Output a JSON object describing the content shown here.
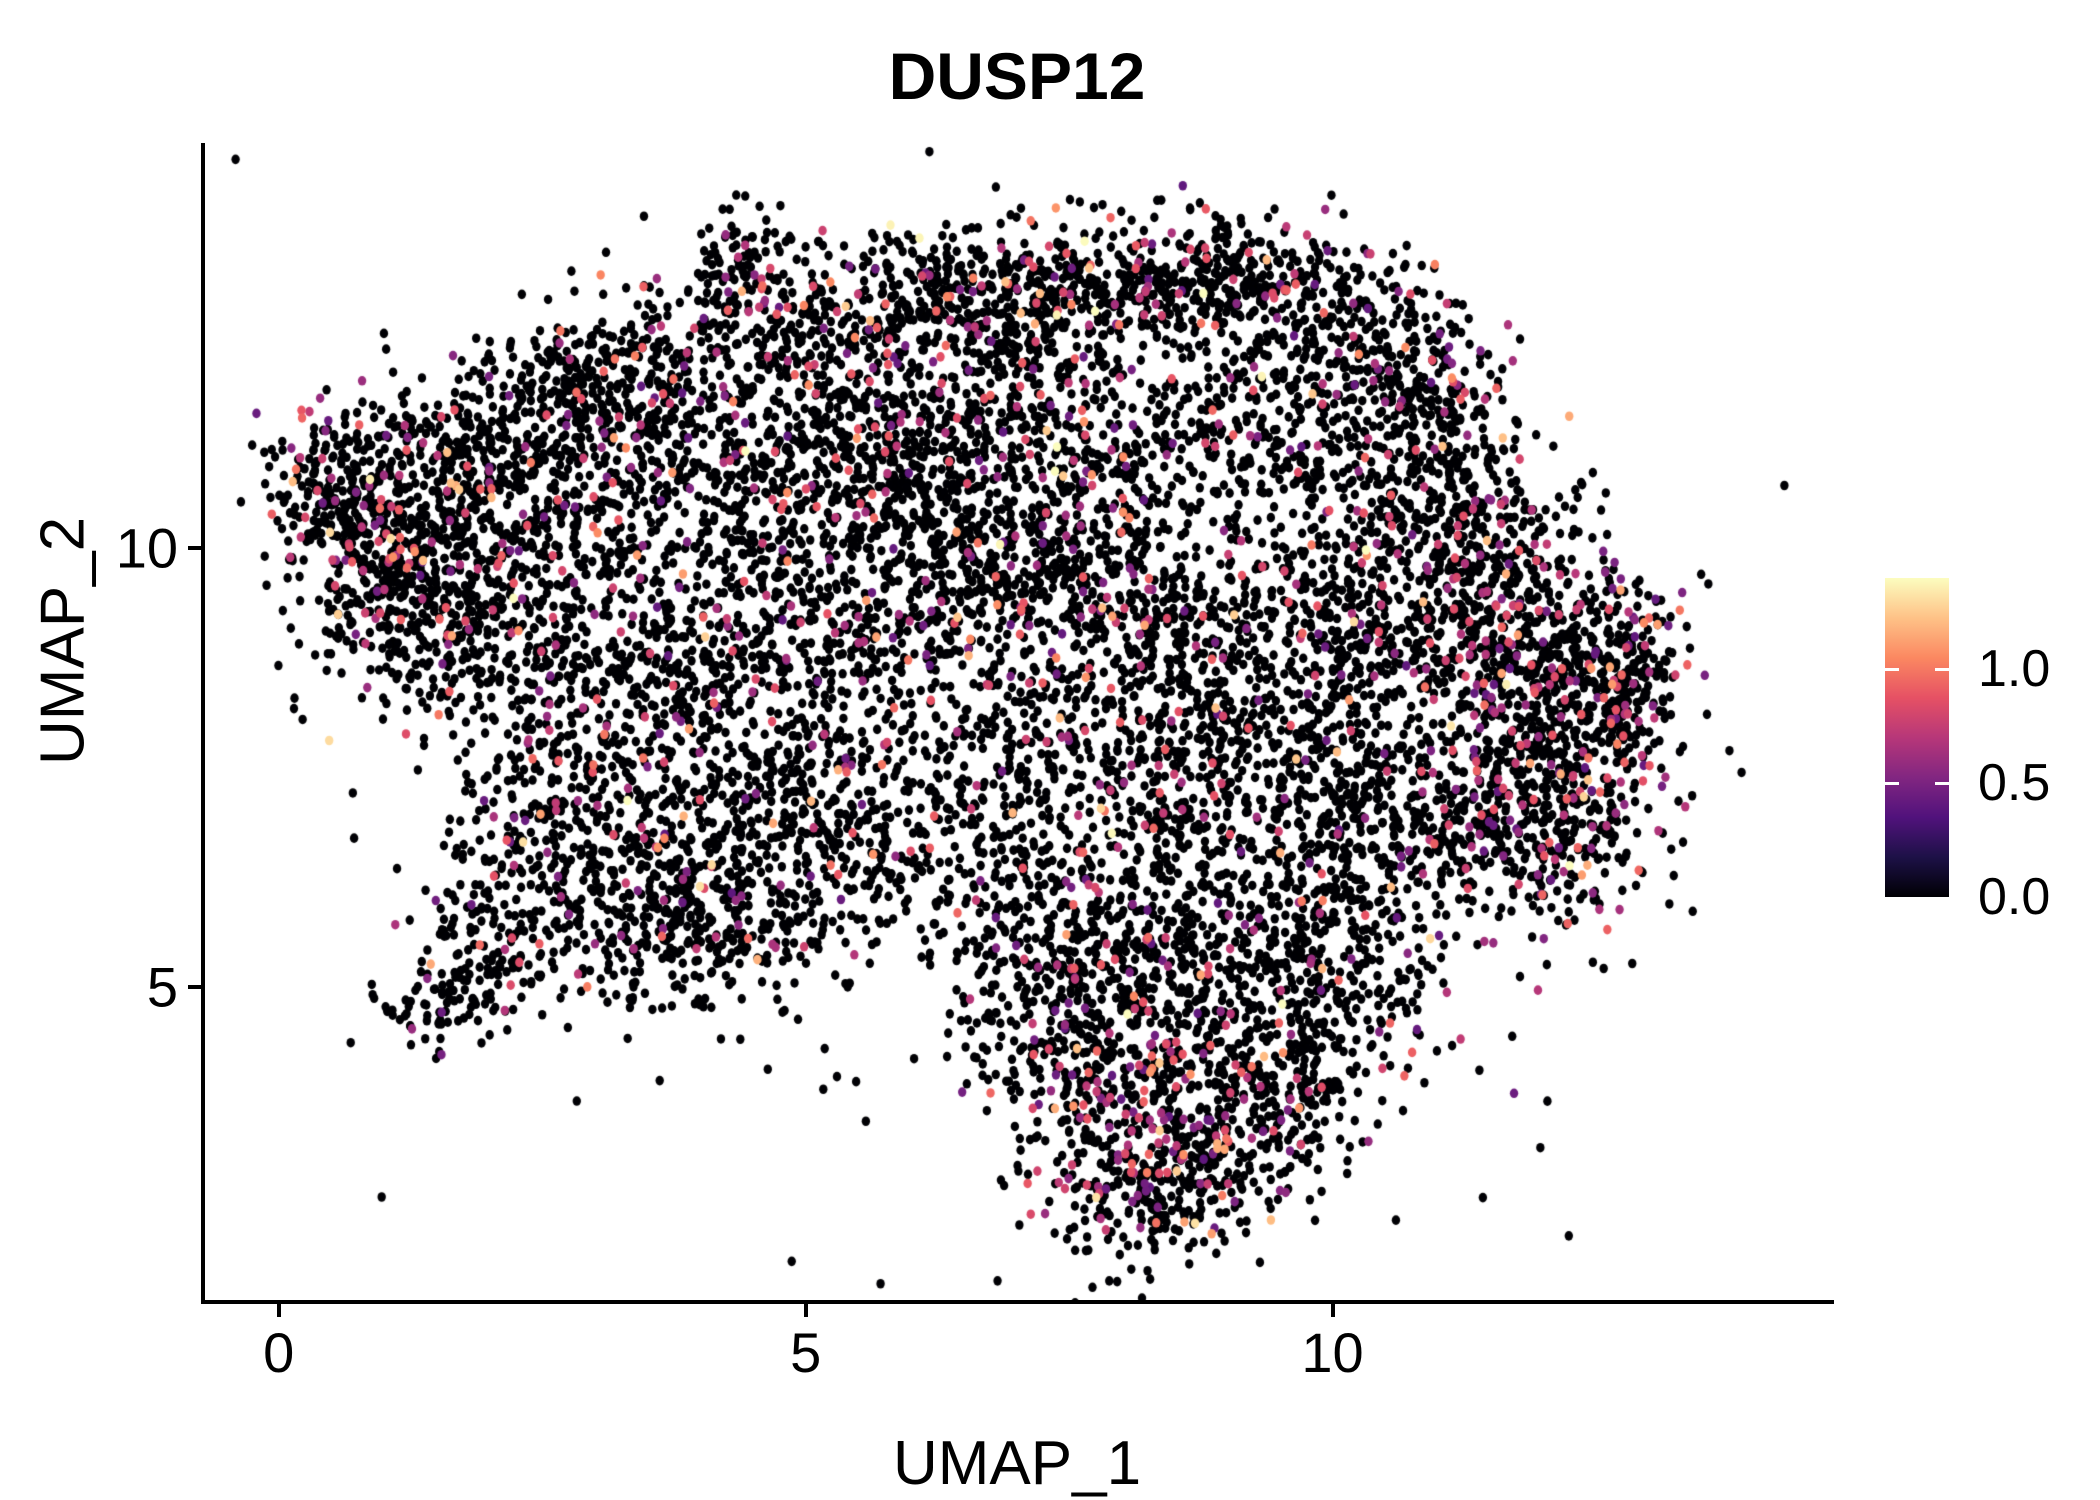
{
  "title": "DUSP12",
  "axes": {
    "x": {
      "label": "UMAP_1",
      "ticks": [
        {
          "label": "0",
          "value": 0
        },
        {
          "label": "5",
          "value": 5
        },
        {
          "label": "10",
          "value": 10
        }
      ]
    },
    "y": {
      "label": "UMAP_2",
      "ticks": [
        {
          "label": "10",
          "value": 10
        },
        {
          "label": "5",
          "value": 5
        }
      ]
    }
  },
  "legend": {
    "ticks": [
      {
        "label": "1.0",
        "value": 1.0
      },
      {
        "label": "0.5",
        "value": 0.5
      },
      {
        "label": "0.0",
        "value": 0.0
      }
    ],
    "domain": [
      0,
      1.4
    ]
  },
  "chart_data": {
    "type": "scatter",
    "title": "DUSP12",
    "xlabel": "UMAP_1",
    "ylabel": "UMAP_2",
    "xlim": [
      -0.7,
      14.73
    ],
    "ylim": [
      1.42,
      14.62
    ],
    "x_ticks": [
      0,
      5,
      10
    ],
    "y_ticks": [
      5,
      10
    ],
    "grid": false,
    "legend_position": "right",
    "colorbar": {
      "domain": [
        0,
        1.4
      ],
      "tick_values": [
        1.0,
        0.5,
        0.0
      ]
    },
    "colormap_stops": [
      [
        0.0,
        "#000004"
      ],
      [
        0.125,
        "#1d1147"
      ],
      [
        0.25,
        "#51127c"
      ],
      [
        0.375,
        "#822681"
      ],
      [
        0.5,
        "#b73779"
      ],
      [
        0.625,
        "#e65164"
      ],
      [
        0.75,
        "#fb8861"
      ],
      [
        0.875,
        "#fec287"
      ],
      [
        1.0,
        "#fcfdbf"
      ]
    ],
    "point_radius_px": [
      4.2,
      4.8
    ],
    "seed": 42,
    "count_scale": 0.8,
    "value_distribution": {
      "p_colored_base": 0.09,
      "mid_range": [
        0.4,
        0.95
      ],
      "p_mid": 0.85,
      "high_range": [
        0.95,
        1.25
      ],
      "p_high": 0.12,
      "max_range": [
        1.25,
        1.42
      ],
      "p_max": 0.03
    },
    "clusters": [
      [
        4.35,
        13.2,
        0.25,
        0.35,
        120,
        1.2
      ],
      [
        5.1,
        12.6,
        0.45,
        0.45,
        200,
        1.2
      ],
      [
        6.0,
        12.9,
        0.5,
        0.4,
        220,
        1.2
      ],
      [
        6.9,
        12.9,
        0.45,
        0.4,
        200,
        1.2
      ],
      [
        7.9,
        13.0,
        0.55,
        0.4,
        260,
        1.2
      ],
      [
        8.9,
        13.1,
        0.5,
        0.35,
        240,
        1.2
      ],
      [
        9.8,
        12.7,
        0.5,
        0.45,
        240,
        1.2
      ],
      [
        10.6,
        12.2,
        0.4,
        0.5,
        200,
        1.2
      ],
      [
        11.1,
        11.4,
        0.35,
        0.5,
        180,
        1.2
      ],
      [
        3.6,
        12.1,
        0.5,
        0.45,
        180,
        1.1
      ],
      [
        2.8,
        11.9,
        0.45,
        0.4,
        160,
        1.1
      ],
      [
        2.0,
        11.3,
        0.5,
        0.5,
        200,
        1.1
      ],
      [
        0.55,
        10.6,
        0.35,
        0.5,
        260,
        1.5
      ],
      [
        0.9,
        9.9,
        0.4,
        0.6,
        260,
        1.5
      ],
      [
        1.5,
        10.6,
        0.5,
        0.6,
        220,
        1.1
      ],
      [
        1.3,
        9.2,
        0.5,
        0.6,
        220,
        1.1
      ],
      [
        2.3,
        10.3,
        0.6,
        0.6,
        220,
        1.1
      ],
      [
        2.1,
        8.9,
        0.55,
        0.7,
        240,
        1.1
      ],
      [
        3.1,
        10.8,
        0.6,
        0.7,
        260,
        1.1
      ],
      [
        4.2,
        11.2,
        0.7,
        0.7,
        280,
        1.0
      ],
      [
        5.3,
        11.3,
        0.6,
        0.6,
        220,
        1.0
      ],
      [
        6.3,
        11.6,
        0.6,
        0.6,
        240,
        1.0
      ],
      [
        7.2,
        11.9,
        0.5,
        0.5,
        180,
        1.0
      ],
      [
        6.0,
        10.6,
        0.7,
        0.6,
        260,
        1.0
      ],
      [
        4.8,
        9.9,
        0.7,
        0.7,
        260,
        1.0
      ],
      [
        7.0,
        10.4,
        0.6,
        0.6,
        220,
        1.0
      ],
      [
        8.0,
        10.7,
        0.5,
        0.5,
        160,
        0.9
      ],
      [
        9.0,
        11.6,
        0.6,
        0.6,
        220,
        0.9
      ],
      [
        9.9,
        11.0,
        0.6,
        0.6,
        220,
        1.0
      ],
      [
        10.7,
        10.3,
        0.5,
        0.6,
        220,
        1.0
      ],
      [
        11.5,
        10.1,
        0.45,
        0.55,
        200,
        1.3
      ],
      [
        3.3,
        9.0,
        0.6,
        0.6,
        240,
        1.0
      ],
      [
        4.3,
        8.7,
        0.6,
        0.6,
        240,
        1.0
      ],
      [
        5.4,
        8.9,
        0.6,
        0.5,
        200,
        1.0
      ],
      [
        6.6,
        9.3,
        0.6,
        0.5,
        200,
        1.0
      ],
      [
        7.6,
        9.5,
        0.6,
        0.5,
        220,
        1.1
      ],
      [
        8.6,
        9.3,
        0.6,
        0.5,
        220,
        1.1
      ],
      [
        9.5,
        9.0,
        0.6,
        0.6,
        240,
        1.1
      ],
      [
        10.4,
        8.9,
        0.5,
        0.6,
        220,
        1.1
      ],
      [
        11.3,
        8.9,
        0.5,
        0.6,
        260,
        1.7
      ],
      [
        12.1,
        8.9,
        0.5,
        0.6,
        280,
        1.8
      ],
      [
        12.5,
        8.0,
        0.4,
        0.6,
        260,
        1.8
      ],
      [
        11.8,
        7.6,
        0.5,
        0.6,
        280,
        1.8
      ],
      [
        12.3,
        6.7,
        0.45,
        0.6,
        240,
        1.7
      ],
      [
        11.2,
        6.6,
        0.5,
        0.5,
        220,
        1.7
      ],
      [
        12.8,
        8.8,
        0.3,
        0.5,
        160,
        1.7
      ],
      [
        3.0,
        7.5,
        0.6,
        0.7,
        260,
        0.9
      ],
      [
        3.9,
        6.6,
        0.6,
        0.6,
        260,
        0.9
      ],
      [
        4.8,
        7.3,
        0.6,
        0.6,
        240,
        0.9
      ],
      [
        5.6,
        6.7,
        0.6,
        0.6,
        220,
        0.9
      ],
      [
        4.5,
        5.8,
        0.6,
        0.5,
        220,
        0.9
      ],
      [
        3.4,
        5.6,
        0.55,
        0.5,
        220,
        0.9
      ],
      [
        6.5,
        7.7,
        0.6,
        0.6,
        180,
        0.8
      ],
      [
        7.6,
        7.9,
        0.6,
        0.6,
        180,
        0.8
      ],
      [
        8.6,
        8.0,
        0.6,
        0.6,
        200,
        0.8
      ],
      [
        9.6,
        7.7,
        0.6,
        0.6,
        200,
        0.8
      ],
      [
        10.3,
        7.2,
        0.5,
        0.6,
        200,
        0.8
      ],
      [
        8.9,
        6.7,
        0.6,
        0.5,
        160,
        0.8
      ],
      [
        7.8,
        6.6,
        0.6,
        0.5,
        140,
        0.8
      ],
      [
        6.8,
        6.2,
        0.5,
        0.5,
        120,
        0.8
      ],
      [
        2.4,
        6.3,
        0.5,
        0.5,
        180,
        1.0
      ],
      [
        1.9,
        5.3,
        0.4,
        0.4,
        120,
        1.0
      ],
      [
        1.45,
        4.8,
        0.25,
        0.25,
        70,
        1.0
      ],
      [
        7.3,
        5.3,
        0.5,
        0.5,
        160,
        1.2
      ],
      [
        8.2,
        5.5,
        0.6,
        0.5,
        180,
        1.2
      ],
      [
        9.3,
        5.6,
        0.5,
        0.5,
        160,
        1.2
      ],
      [
        10.1,
        5.9,
        0.45,
        0.5,
        160,
        1.2
      ],
      [
        7.4,
        4.4,
        0.5,
        0.6,
        180,
        1.2
      ],
      [
        8.3,
        4.4,
        0.6,
        0.6,
        200,
        1.2
      ],
      [
        9.3,
        4.5,
        0.5,
        0.6,
        180,
        1.2
      ],
      [
        7.9,
        3.4,
        0.5,
        0.6,
        220,
        1.9
      ],
      [
        8.8,
        3.3,
        0.5,
        0.6,
        220,
        1.9
      ],
      [
        8.4,
        2.6,
        0.45,
        0.45,
        200,
        1.9
      ],
      [
        9.6,
        3.6,
        0.4,
        0.5,
        140,
        1.3
      ],
      [
        10.2,
        4.8,
        0.4,
        0.5,
        140,
        1.3
      ],
      [
        7.0,
        8.0,
        3.5,
        3.2,
        150,
        0.8
      ],
      [
        8.5,
        4.2,
        1.6,
        1.2,
        80,
        1.0
      ]
    ]
  }
}
